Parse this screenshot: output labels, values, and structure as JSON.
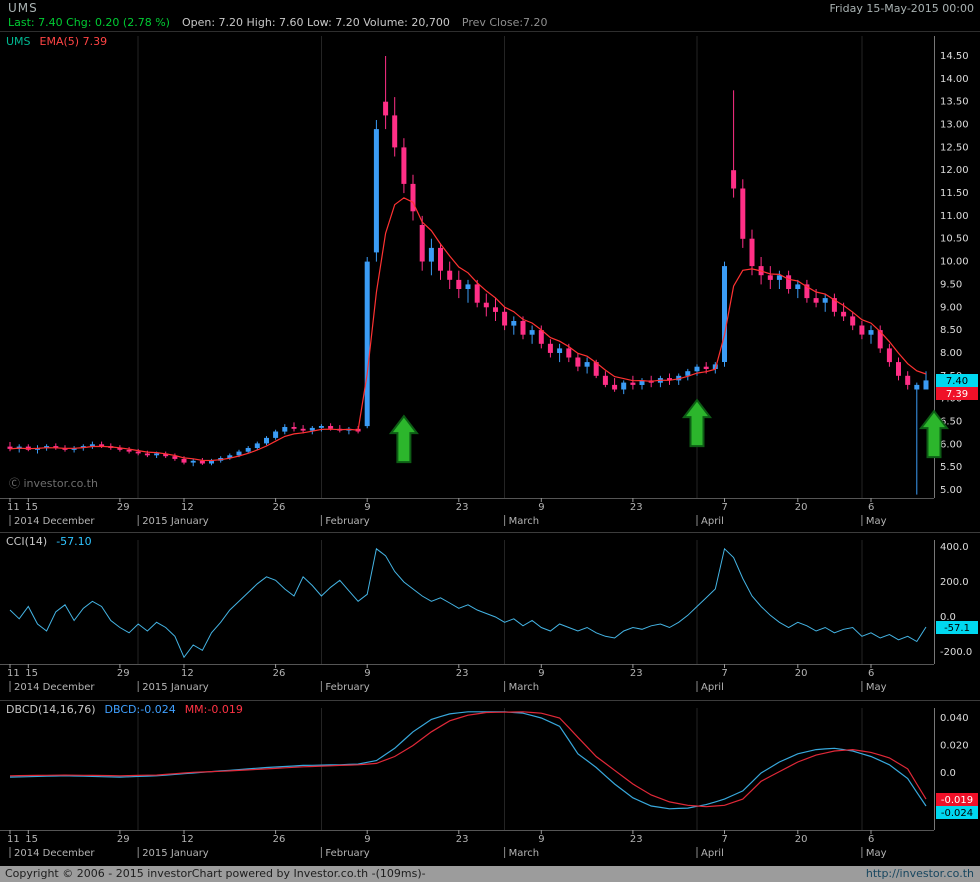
{
  "titlebar": {
    "symbol": "UMS",
    "datetime": "Friday 15-May-2015 00:00"
  },
  "quote": {
    "last_chg": "Last: 7.40 Chg: 0.20 (2.78 %)",
    "ohlcv": "Open: 7.20 High: 7.60 Low: 7.20 Volume: 20,700",
    "prev_close": "Prev Close:7.20"
  },
  "watermark": "Ⓒ investor.co.th",
  "footer": {
    "copyright": "Copyright © 2006 - 2015 investorChart powered by Investor.co.th -(109ms)-",
    "url": "http://investor.co.th"
  },
  "colors": {
    "up": "#3b9cf5",
    "down": "#ff2f86",
    "ema": "#ff3232",
    "cci": "#44b4e4",
    "dbcd": "#38a8dc",
    "mm": "#e02838",
    "badge_cyan": "#00d8f0",
    "badge_red": "#f01028",
    "arrow_fill": "#2cb62c",
    "arrow_stroke": "#0d5d15",
    "grid": "#242424",
    "axis_line": "#777777",
    "baseline": "#555555",
    "tick_text": "#b4b4b4",
    "axis_text": "#dcdcdc"
  },
  "x_axis": {
    "count": 101,
    "ticks": [
      [
        0,
        "11"
      ],
      [
        2,
        "15"
      ],
      [
        12,
        "29"
      ],
      [
        19,
        "12"
      ],
      [
        29,
        "26"
      ],
      [
        39,
        "9"
      ],
      [
        49,
        "23"
      ],
      [
        58,
        "9"
      ],
      [
        68,
        "23"
      ],
      [
        78,
        "7"
      ],
      [
        86,
        "20"
      ],
      [
        94,
        "6"
      ]
    ],
    "months": [
      [
        0,
        "2014 December"
      ],
      [
        14,
        "2015 January"
      ],
      [
        34,
        "February"
      ],
      [
        54,
        "March"
      ],
      [
        75,
        "April"
      ],
      [
        93,
        "May"
      ]
    ]
  },
  "chart_data": [
    {
      "type": "candlestick",
      "name": "UMS daily price",
      "legend_symbol": "UMS",
      "legend_ema": "EMA(5) 7.39",
      "ema_period": 5,
      "ylim": [
        5.0,
        14.5
      ],
      "y_ticks": [
        14.5,
        14.0,
        13.5,
        13.0,
        12.5,
        12.0,
        11.5,
        11.0,
        10.5,
        10.0,
        9.5,
        9.0,
        8.5,
        8.0,
        7.5,
        7.0,
        6.5,
        6.0,
        5.5,
        5.0
      ],
      "last_price": 7.4,
      "ema_value": 7.39,
      "price_badge": "7.40",
      "ema_badge": "7.39",
      "annotations": [
        {
          "type": "arrow-up",
          "i": 43,
          "price": 5.61
        },
        {
          "type": "arrow-up",
          "i": 75,
          "price": 5.96
        },
        {
          "type": "arrow-up",
          "i": 100,
          "price": 5.72,
          "dx": 8
        }
      ],
      "ohlc": [
        [
          5.95,
          6.05,
          5.85,
          5.9
        ],
        [
          5.9,
          6.0,
          5.82,
          5.95
        ],
        [
          5.95,
          6.0,
          5.85,
          5.88
        ],
        [
          5.88,
          5.98,
          5.8,
          5.92
        ],
        [
          5.92,
          6.0,
          5.86,
          5.96
        ],
        [
          5.96,
          6.02,
          5.88,
          5.92
        ],
        [
          5.92,
          5.98,
          5.84,
          5.88
        ],
        [
          5.88,
          5.96,
          5.82,
          5.92
        ],
        [
          5.92,
          6.0,
          5.86,
          5.96
        ],
        [
          5.96,
          6.06,
          5.9,
          6.0
        ],
        [
          6.0,
          6.06,
          5.92,
          5.96
        ],
        [
          5.96,
          6.02,
          5.88,
          5.92
        ],
        [
          5.92,
          5.98,
          5.84,
          5.88
        ],
        [
          5.88,
          5.94,
          5.8,
          5.84
        ],
        [
          5.84,
          5.9,
          5.76,
          5.8
        ],
        [
          5.8,
          5.86,
          5.72,
          5.76
        ],
        [
          5.76,
          5.84,
          5.7,
          5.8
        ],
        [
          5.8,
          5.84,
          5.7,
          5.74
        ],
        [
          5.74,
          5.8,
          5.64,
          5.68
        ],
        [
          5.68,
          5.74,
          5.56,
          5.6
        ],
        [
          5.6,
          5.68,
          5.52,
          5.64
        ],
        [
          5.64,
          5.7,
          5.55,
          5.58
        ],
        [
          5.58,
          5.68,
          5.54,
          5.64
        ],
        [
          5.64,
          5.74,
          5.6,
          5.7
        ],
        [
          5.7,
          5.8,
          5.66,
          5.76
        ],
        [
          5.76,
          5.88,
          5.72,
          5.84
        ],
        [
          5.84,
          5.96,
          5.8,
          5.92
        ],
        [
          5.92,
          6.06,
          5.88,
          6.02
        ],
        [
          6.02,
          6.18,
          5.98,
          6.14
        ],
        [
          6.14,
          6.32,
          6.1,
          6.28
        ],
        [
          6.28,
          6.44,
          6.22,
          6.38
        ],
        [
          6.38,
          6.48,
          6.28,
          6.34
        ],
        [
          6.34,
          6.42,
          6.24,
          6.3
        ],
        [
          6.3,
          6.4,
          6.22,
          6.36
        ],
        [
          6.36,
          6.44,
          6.28,
          6.4
        ],
        [
          6.4,
          6.46,
          6.3,
          6.34
        ],
        [
          6.34,
          6.42,
          6.26,
          6.3
        ],
        [
          6.3,
          6.38,
          6.22,
          6.34
        ],
        [
          6.34,
          6.4,
          6.24,
          6.28
        ],
        [
          6.4,
          10.1,
          6.35,
          10.0
        ],
        [
          10.2,
          13.1,
          10.0,
          12.9
        ],
        [
          13.5,
          14.5,
          12.9,
          13.2
        ],
        [
          13.2,
          13.6,
          12.3,
          12.5
        ],
        [
          12.5,
          12.7,
          11.5,
          11.7
        ],
        [
          11.7,
          11.9,
          10.9,
          11.1
        ],
        [
          10.8,
          11.0,
          9.8,
          10.0
        ],
        [
          10.0,
          10.5,
          9.7,
          10.3
        ],
        [
          10.3,
          10.4,
          9.6,
          9.8
        ],
        [
          9.8,
          10.0,
          9.4,
          9.6
        ],
        [
          9.6,
          9.8,
          9.2,
          9.4
        ],
        [
          9.4,
          9.6,
          9.1,
          9.5
        ],
        [
          9.5,
          9.6,
          9.0,
          9.1
        ],
        [
          9.1,
          9.3,
          8.8,
          9.0
        ],
        [
          9.0,
          9.2,
          8.7,
          8.9
        ],
        [
          8.9,
          9.0,
          8.5,
          8.6
        ],
        [
          8.6,
          8.8,
          8.4,
          8.7
        ],
        [
          8.7,
          8.8,
          8.3,
          8.4
        ],
        [
          8.4,
          8.6,
          8.2,
          8.5
        ],
        [
          8.5,
          8.6,
          8.1,
          8.2
        ],
        [
          8.2,
          8.3,
          7.9,
          8.0
        ],
        [
          8.0,
          8.2,
          7.8,
          8.1
        ],
        [
          8.1,
          8.2,
          7.8,
          7.9
        ],
        [
          7.9,
          8.0,
          7.6,
          7.7
        ],
        [
          7.7,
          7.9,
          7.55,
          7.8
        ],
        [
          7.8,
          7.85,
          7.45,
          7.5
        ],
        [
          7.5,
          7.6,
          7.25,
          7.3
        ],
        [
          7.3,
          7.45,
          7.15,
          7.2
        ],
        [
          7.2,
          7.4,
          7.1,
          7.35
        ],
        [
          7.35,
          7.5,
          7.2,
          7.3
        ],
        [
          7.3,
          7.45,
          7.2,
          7.4
        ],
        [
          7.4,
          7.5,
          7.25,
          7.35
        ],
        [
          7.35,
          7.5,
          7.25,
          7.45
        ],
        [
          7.45,
          7.55,
          7.3,
          7.4
        ],
        [
          7.4,
          7.55,
          7.3,
          7.5
        ],
        [
          7.5,
          7.65,
          7.4,
          7.6
        ],
        [
          7.6,
          7.75,
          7.5,
          7.7
        ],
        [
          7.7,
          7.8,
          7.55,
          7.65
        ],
        [
          7.65,
          7.8,
          7.55,
          7.75
        ],
        [
          7.8,
          10.0,
          7.7,
          9.9
        ],
        [
          12.0,
          13.75,
          11.4,
          11.6
        ],
        [
          11.6,
          11.8,
          10.3,
          10.5
        ],
        [
          10.5,
          10.7,
          9.7,
          9.9
        ],
        [
          9.9,
          10.1,
          9.5,
          9.7
        ],
        [
          9.7,
          9.9,
          9.4,
          9.6
        ],
        [
          9.6,
          9.8,
          9.4,
          9.7
        ],
        [
          9.7,
          9.8,
          9.3,
          9.4
        ],
        [
          9.4,
          9.6,
          9.2,
          9.5
        ],
        [
          9.5,
          9.6,
          9.1,
          9.2
        ],
        [
          9.2,
          9.4,
          9.0,
          9.1
        ],
        [
          9.1,
          9.3,
          8.9,
          9.2
        ],
        [
          9.2,
          9.3,
          8.8,
          8.9
        ],
        [
          8.9,
          9.1,
          8.7,
          8.8
        ],
        [
          8.8,
          8.9,
          8.5,
          8.6
        ],
        [
          8.6,
          8.7,
          8.3,
          8.4
        ],
        [
          8.4,
          8.6,
          8.2,
          8.5
        ],
        [
          8.5,
          8.6,
          8.0,
          8.1
        ],
        [
          8.1,
          8.2,
          7.7,
          7.8
        ],
        [
          7.8,
          7.9,
          7.4,
          7.5
        ],
        [
          7.5,
          7.6,
          7.2,
          7.3
        ],
        [
          7.2,
          7.35,
          4.9,
          7.3
        ],
        [
          7.2,
          7.6,
          7.2,
          7.4
        ]
      ]
    },
    {
      "type": "line",
      "name": "CCI(14)",
      "value_label": "-57.10",
      "value": -57.1,
      "badge": "-57.1",
      "ylim": [
        -270,
        450
      ],
      "y_ticks": [
        [
          400,
          "400.0"
        ],
        [
          200,
          "200.0"
        ],
        [
          0,
          "0.0"
        ],
        [
          -200,
          "-200.0"
        ]
      ],
      "values": [
        40,
        -10,
        60,
        -40,
        -80,
        30,
        70,
        -20,
        50,
        90,
        60,
        -20,
        -60,
        -90,
        -40,
        -80,
        -30,
        -60,
        -110,
        -230,
        -160,
        -190,
        -90,
        -30,
        40,
        90,
        140,
        190,
        230,
        210,
        160,
        120,
        230,
        180,
        120,
        170,
        210,
        150,
        90,
        130,
        390,
        350,
        260,
        200,
        160,
        120,
        90,
        110,
        80,
        50,
        70,
        40,
        20,
        0,
        -30,
        -10,
        -50,
        -20,
        -60,
        -80,
        -40,
        -60,
        -80,
        -60,
        -90,
        -110,
        -120,
        -80,
        -60,
        -70,
        -50,
        -40,
        -60,
        -30,
        10,
        60,
        110,
        160,
        390,
        340,
        220,
        120,
        60,
        10,
        -30,
        -60,
        -30,
        -50,
        -80,
        -60,
        -90,
        -70,
        -60,
        -110,
        -90,
        -120,
        -100,
        -130,
        -110,
        -140,
        -57
      ]
    },
    {
      "type": "line",
      "name": "DBCD(14,16,76)",
      "dbcd_label": "DBCD:-0.024",
      "mm_label": "MM:-0.019",
      "ylim": [
        -0.03,
        0.048
      ],
      "y_ticks": [
        [
          0.04,
          "0.040"
        ],
        [
          0.02,
          "0.020"
        ],
        [
          0,
          "0.0"
        ],
        [
          -0.02,
          "-0.020"
        ]
      ],
      "badges": [
        {
          "value": -0.019,
          "label": "-0.019",
          "style": "red"
        },
        {
          "value": -0.024,
          "label": "-0.024",
          "style": "cyan"
        }
      ],
      "series": [
        {
          "name": "DBCD",
          "keyframes": [
            [
              0,
              -0.003
            ],
            [
              6,
              -0.002
            ],
            [
              12,
              -0.003
            ],
            [
              16,
              -0.002
            ],
            [
              20,
              0.0
            ],
            [
              24,
              0.002
            ],
            [
              28,
              0.004
            ],
            [
              32,
              0.0055
            ],
            [
              36,
              0.006
            ],
            [
              38,
              0.0065
            ],
            [
              40,
              0.009
            ],
            [
              42,
              0.018
            ],
            [
              44,
              0.03
            ],
            [
              46,
              0.039
            ],
            [
              48,
              0.043
            ],
            [
              50,
              0.0445
            ],
            [
              54,
              0.0445
            ],
            [
              56,
              0.0435
            ],
            [
              58,
              0.04
            ],
            [
              60,
              0.034
            ],
            [
              62,
              0.014
            ],
            [
              64,
              0.004
            ],
            [
              66,
              -0.008
            ],
            [
              68,
              -0.018
            ],
            [
              70,
              -0.024
            ],
            [
              72,
              -0.026
            ],
            [
              74,
              -0.0255
            ],
            [
              76,
              -0.023
            ],
            [
              78,
              -0.019
            ],
            [
              80,
              -0.013
            ],
            [
              82,
              0.0
            ],
            [
              84,
              0.008
            ],
            [
              86,
              0.014
            ],
            [
              88,
              0.017
            ],
            [
              90,
              0.018
            ],
            [
              92,
              0.016
            ],
            [
              94,
              0.012
            ],
            [
              96,
              0.006
            ],
            [
              98,
              -0.004
            ],
            [
              99,
              -0.014
            ],
            [
              100,
              -0.024
            ]
          ]
        },
        {
          "name": "MM",
          "keyframes": [
            [
              0,
              -0.002
            ],
            [
              6,
              -0.0015
            ],
            [
              12,
              -0.002
            ],
            [
              16,
              -0.0015
            ],
            [
              20,
              0.0005
            ],
            [
              24,
              0.0015
            ],
            [
              28,
              0.003
            ],
            [
              32,
              0.0045
            ],
            [
              36,
              0.0055
            ],
            [
              38,
              0.006
            ],
            [
              40,
              0.007
            ],
            [
              42,
              0.012
            ],
            [
              44,
              0.02
            ],
            [
              46,
              0.03
            ],
            [
              48,
              0.038
            ],
            [
              50,
              0.042
            ],
            [
              52,
              0.044
            ],
            [
              56,
              0.0445
            ],
            [
              58,
              0.0435
            ],
            [
              60,
              0.04
            ],
            [
              62,
              0.026
            ],
            [
              64,
              0.012
            ],
            [
              66,
              0.002
            ],
            [
              68,
              -0.008
            ],
            [
              70,
              -0.016
            ],
            [
              72,
              -0.021
            ],
            [
              74,
              -0.0235
            ],
            [
              76,
              -0.0245
            ],
            [
              78,
              -0.0235
            ],
            [
              80,
              -0.019
            ],
            [
              82,
              -0.006
            ],
            [
              84,
              0.001
            ],
            [
              86,
              0.008
            ],
            [
              88,
              0.013
            ],
            [
              90,
              0.016
            ],
            [
              92,
              0.017
            ],
            [
              94,
              0.015
            ],
            [
              96,
              0.011
            ],
            [
              98,
              0.003
            ],
            [
              99,
              -0.008
            ],
            [
              100,
              -0.019
            ]
          ]
        }
      ]
    }
  ]
}
